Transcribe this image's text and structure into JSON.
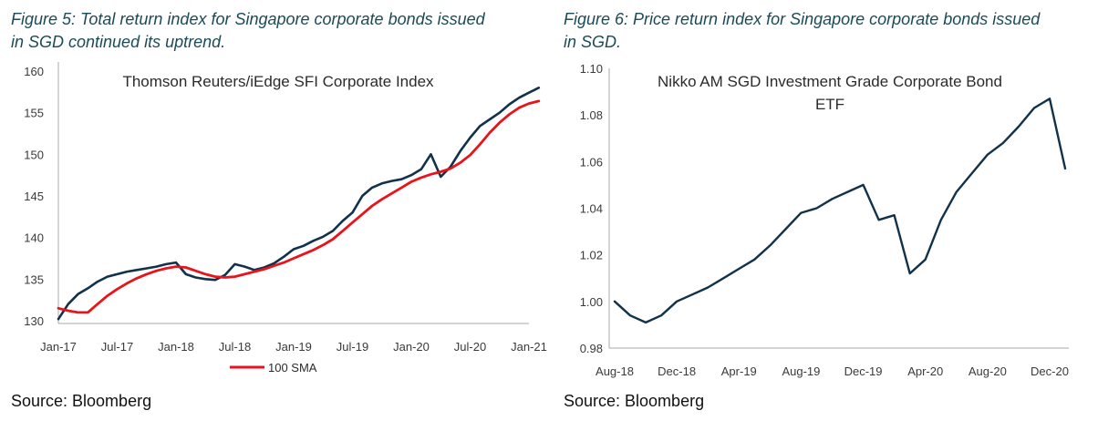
{
  "figures": [
    {
      "caption_line1": "Figure 5: Total return index for Singapore corporate bonds issued",
      "caption_line2": "in SGD continued its uptrend.",
      "source": "Source: Bloomberg"
    },
    {
      "caption_line1": "Figure 6: Price return index for Singapore corporate bonds issued",
      "caption_line2": "in SGD.",
      "source": "Source: Bloomberg"
    }
  ],
  "chart_data": [
    {
      "type": "line",
      "title": "Thomson Reuters/iEdge SFI Corporate Index",
      "xlabel": "",
      "ylabel": "",
      "x_ticks": [
        "Jan-17",
        "Jul-17",
        "Jan-18",
        "Jul-18",
        "Jan-19",
        "Jul-19",
        "Jan-20",
        "Jul-20",
        "Jan-21"
      ],
      "y_ticks": [
        "130",
        "135",
        "140",
        "145",
        "150",
        "155",
        "160"
      ],
      "ylim": [
        130,
        160
      ],
      "grid": false,
      "legend_position": "bottom",
      "series": [
        {
          "name": "",
          "color": "#11324a",
          "x": [
            "2017-01",
            "2017-02",
            "2017-03",
            "2017-04",
            "2017-05",
            "2017-06",
            "2017-07",
            "2017-08",
            "2017-09",
            "2017-10",
            "2017-11",
            "2017-12",
            "2018-01",
            "2018-02",
            "2018-03",
            "2018-04",
            "2018-05",
            "2018-06",
            "2018-07",
            "2018-08",
            "2018-09",
            "2018-10",
            "2018-11",
            "2018-12",
            "2019-01",
            "2019-02",
            "2019-03",
            "2019-04",
            "2019-05",
            "2019-06",
            "2019-07",
            "2019-08",
            "2019-09",
            "2019-10",
            "2019-11",
            "2019-12",
            "2020-01",
            "2020-02",
            "2020-03",
            "2020-04",
            "2020-05",
            "2020-06",
            "2020-07",
            "2020-08",
            "2020-09",
            "2020-10",
            "2020-11",
            "2020-12",
            "2021-01",
            "2021-02"
          ],
          "values": [
            130.2,
            132.0,
            133.2,
            133.9,
            134.7,
            135.3,
            135.6,
            135.9,
            136.1,
            136.3,
            136.5,
            136.8,
            137.0,
            135.6,
            135.2,
            135.0,
            134.9,
            135.5,
            136.8,
            136.5,
            136.1,
            136.4,
            136.9,
            137.7,
            138.6,
            139.0,
            139.6,
            140.1,
            140.8,
            142.0,
            143.0,
            145.0,
            146.0,
            146.5,
            146.8,
            147.0,
            147.5,
            148.2,
            150.0,
            147.3,
            148.5,
            150.4,
            152.0,
            153.4,
            154.2,
            155.0,
            156.0,
            156.8,
            157.4,
            158.0
          ]
        },
        {
          "name": "100 SMA",
          "color": "#e8131b",
          "x": [
            "2017-01",
            "2017-02",
            "2017-03",
            "2017-04",
            "2017-05",
            "2017-06",
            "2017-07",
            "2017-08",
            "2017-09",
            "2017-10",
            "2017-11",
            "2017-12",
            "2018-01",
            "2018-02",
            "2018-03",
            "2018-04",
            "2018-05",
            "2018-06",
            "2018-07",
            "2018-08",
            "2018-09",
            "2018-10",
            "2018-11",
            "2018-12",
            "2019-01",
            "2019-02",
            "2019-03",
            "2019-04",
            "2019-05",
            "2019-06",
            "2019-07",
            "2019-08",
            "2019-09",
            "2019-10",
            "2019-11",
            "2019-12",
            "2020-01",
            "2020-02",
            "2020-03",
            "2020-04",
            "2020-05",
            "2020-06",
            "2020-07",
            "2020-08",
            "2020-09",
            "2020-10",
            "2020-11",
            "2020-12",
            "2021-01",
            "2021-02"
          ],
          "values": [
            131.5,
            131.2,
            131.0,
            131.0,
            132.0,
            133.0,
            133.8,
            134.5,
            135.1,
            135.6,
            136.0,
            136.3,
            136.5,
            136.4,
            136.0,
            135.6,
            135.3,
            135.2,
            135.3,
            135.6,
            135.9,
            136.2,
            136.6,
            137.0,
            137.5,
            138.0,
            138.5,
            139.1,
            139.8,
            140.8,
            141.8,
            142.8,
            143.8,
            144.6,
            145.3,
            146.0,
            146.7,
            147.2,
            147.6,
            147.9,
            148.3,
            149.0,
            149.9,
            151.2,
            152.6,
            153.8,
            154.8,
            155.6,
            156.1,
            156.4
          ]
        }
      ]
    },
    {
      "type": "line",
      "title": "Nikko AM SGD Investment Grade Corporate Bond ETF",
      "title_line1": "Nikko AM SGD Investment Grade Corporate Bond",
      "title_line2": "ETF",
      "xlabel": "",
      "ylabel": "",
      "x_ticks": [
        "Aug-18",
        "Dec-18",
        "Apr-19",
        "Aug-19",
        "Dec-19",
        "Apr-20",
        "Aug-20",
        "Dec-20"
      ],
      "y_ticks": [
        "0.98",
        "1.00",
        "1.02",
        "1.04",
        "1.06",
        "1.08",
        "1.10"
      ],
      "ylim": [
        0.98,
        1.1
      ],
      "grid": false,
      "series": [
        {
          "name": "",
          "color": "#11324a",
          "x": [
            "2018-08",
            "2018-09",
            "2018-10",
            "2018-11",
            "2018-12",
            "2019-01",
            "2019-02",
            "2019-03",
            "2019-04",
            "2019-05",
            "2019-06",
            "2019-07",
            "2019-08",
            "2019-09",
            "2019-10",
            "2019-11",
            "2019-12",
            "2020-01",
            "2020-02",
            "2020-03",
            "2020-04",
            "2020-05",
            "2020-06",
            "2020-07",
            "2020-08",
            "2020-09",
            "2020-10",
            "2020-11",
            "2020-12",
            "2021-01"
          ],
          "values": [
            1.0,
            0.994,
            0.991,
            0.994,
            1.0,
            1.003,
            1.006,
            1.01,
            1.014,
            1.018,
            1.024,
            1.031,
            1.038,
            1.04,
            1.044,
            1.047,
            1.05,
            1.035,
            1.037,
            1.012,
            1.018,
            1.035,
            1.047,
            1.055,
            1.063,
            1.068,
            1.075,
            1.083,
            1.087,
            1.057
          ]
        }
      ]
    }
  ]
}
